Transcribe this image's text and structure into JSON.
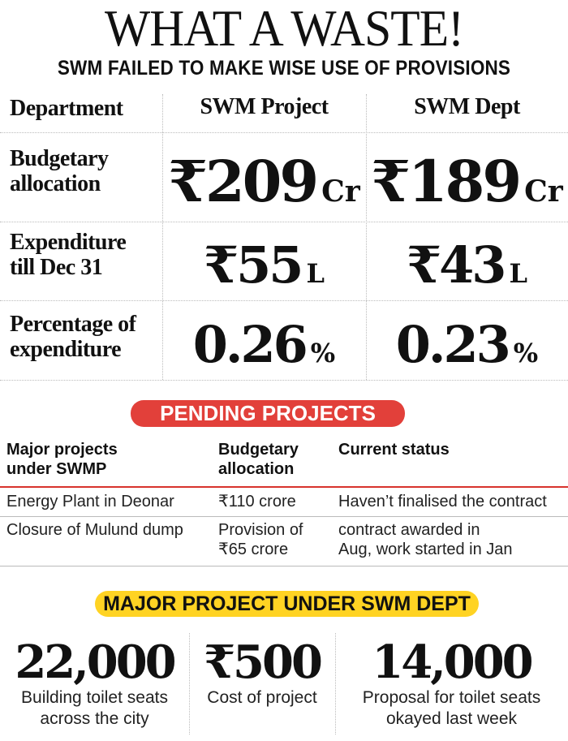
{
  "header": {
    "title": "WHAT A WASTE!",
    "subtitle": "SWM FAILED TO MAKE WISE USE OF PROVISIONS"
  },
  "summary": {
    "columns": [
      "Department",
      "SWM Project",
      "SWM Dept"
    ],
    "rows": [
      {
        "label": [
          "Budgetary",
          "allocation"
        ],
        "project": {
          "value": "₹209",
          "unit": "Cr"
        },
        "dept": {
          "value": "₹189",
          "unit": "Cr"
        }
      },
      {
        "label": [
          "Expenditure",
          "till Dec 31"
        ],
        "project": {
          "value": "₹55",
          "unit": "L"
        },
        "dept": {
          "value": "₹43",
          "unit": "L"
        }
      },
      {
        "label": [
          "Percentage of",
          "expenditure"
        ],
        "project": {
          "value": "0.26",
          "unit": "%"
        },
        "dept": {
          "value": "0.23",
          "unit": "%"
        }
      }
    ]
  },
  "pending": {
    "banner": "PENDING PROJECTS",
    "headers": [
      [
        "Major projects",
        "under SWMP"
      ],
      [
        "Budgetary",
        "allocation"
      ],
      [
        "Current status"
      ]
    ],
    "rows": [
      {
        "project": [
          "Energy Plant in Deonar"
        ],
        "allocation": [
          "₹110 crore"
        ],
        "status": [
          "Haven’t finalised the contract"
        ]
      },
      {
        "project": [
          "Closure of Mulund dump"
        ],
        "allocation": [
          "Provision of",
          "₹65 crore"
        ],
        "status": [
          "contract awarded in",
          "Aug, work started in Jan"
        ]
      }
    ]
  },
  "major": {
    "banner": "MAJOR PROJECT UNDER SWM DEPT",
    "stats": [
      {
        "value": "22,000",
        "caption": [
          "Building toilet seats",
          "across the city"
        ]
      },
      {
        "value": "₹500",
        "caption": [
          "Cost of project"
        ]
      },
      {
        "value": "14,000",
        "caption": [
          "Proposal for toilet seats",
          "okayed last week"
        ]
      }
    ]
  }
}
